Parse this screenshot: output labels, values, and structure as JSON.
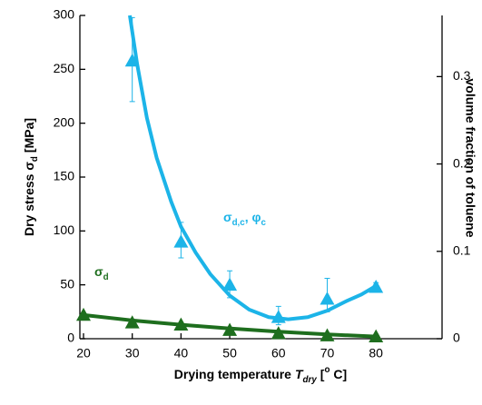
{
  "chart_data": {
    "type": "scatter",
    "xlabel": [
      {
        "text": "Drying temperature"
      },
      {
        "text": "T",
        "style": "italic"
      },
      {
        "text": "dry",
        "style": "sub-italic"
      },
      {
        "text": "["
      },
      {
        "text": "o",
        "style": "sup"
      },
      {
        "text": "C]"
      }
    ],
    "ylabel": [
      {
        "text": "Dry stress σ"
      },
      {
        "text": "d",
        "style": "sub"
      },
      {
        "text": "[MPa]"
      }
    ],
    "y2label": "volume fraction of toluene",
    "xlim": [
      20,
      93
    ],
    "xticks": [
      20,
      30,
      40,
      50,
      60,
      70,
      80
    ],
    "ylim": [
      0,
      300
    ],
    "yticks": [
      0,
      50,
      100,
      150,
      200,
      250,
      300
    ],
    "y2lim": [
      0,
      0.37
    ],
    "y2ticks": [
      0,
      0.1,
      0.2,
      0.3
    ],
    "series": [
      {
        "name": [
          {
            "text": "σ"
          },
          {
            "text": "d",
            "style": "sub"
          }
        ],
        "color": "#1e6e1e",
        "marker": "triangle",
        "x": [
          20,
          30,
          40,
          50,
          60,
          70,
          80
        ],
        "values": [
          22,
          15,
          13,
          8,
          5,
          3,
          2
        ]
      },
      {
        "name": [
          {
            "text": "σ"
          },
          {
            "text": "d,c",
            "style": "sub"
          },
          {
            "text": ", φ"
          },
          {
            "text": "c",
            "style": "sub"
          }
        ],
        "color": "#1cb4e8",
        "marker": "triangle",
        "x": [
          30,
          40,
          50,
          60,
          70,
          80
        ],
        "values": [
          258,
          90,
          50,
          20,
          37,
          48
        ],
        "err_lower": [
          38,
          15,
          12,
          7,
          12,
          3
        ],
        "err_upper": [
          40,
          18,
          13,
          10,
          19,
          4
        ]
      },
      {
        "color": "#1e6e1e",
        "marker": "line",
        "x": [
          20,
          30,
          40,
          50,
          60,
          70,
          80
        ],
        "values": [
          22,
          17,
          13,
          9.5,
          6.5,
          4,
          2
        ]
      },
      {
        "color": "#1cb4e8",
        "marker": "line",
        "x": [
          29.5,
          31,
          33,
          35,
          38,
          40,
          43,
          46,
          50,
          54,
          58,
          62,
          66,
          70,
          74,
          77,
          80
        ],
        "values": [
          300,
          255,
          205,
          168,
          127,
          104,
          80,
          60,
          40,
          27,
          20,
          18,
          20,
          26,
          35,
          41,
          49
        ]
      }
    ]
  }
}
